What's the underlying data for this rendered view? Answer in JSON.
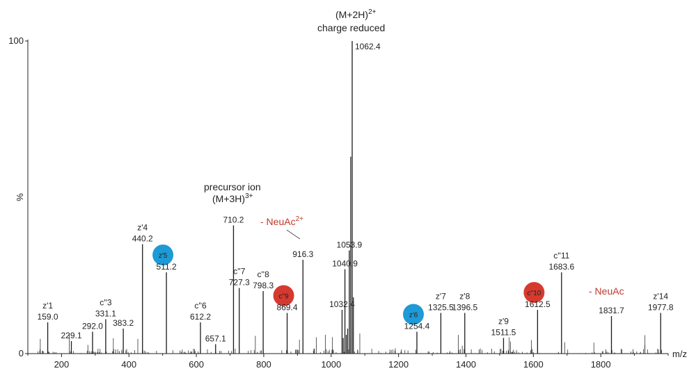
{
  "chart_data": {
    "type": "bar",
    "xlabel": "m/z",
    "ylabel": "%",
    "xlim": [
      100,
      2000
    ],
    "ylim": [
      0,
      100
    ],
    "x_ticks": [
      200,
      400,
      600,
      800,
      1000,
      1200,
      1400,
      1600,
      1800
    ],
    "y_ticks": [
      0,
      100
    ],
    "colors": {
      "axis": "#222222",
      "peak": "#1a1a1a",
      "blue": "#1e9ad6",
      "red": "#d63a2f",
      "red_text": "#c0392b"
    },
    "peaks": [
      {
        "x": 159.0,
        "y": 10,
        "label": "159.0",
        "ion": "z'1"
      },
      {
        "x": 229.1,
        "y": 4,
        "label": "229.1"
      },
      {
        "x": 292.0,
        "y": 7,
        "label": "292.0"
      },
      {
        "x": 331.1,
        "y": 11,
        "label": "331.1",
        "ion": "c''3"
      },
      {
        "x": 383.2,
        "y": 8,
        "label": "383.2"
      },
      {
        "x": 440.2,
        "y": 35,
        "label": "440.2",
        "ion": "z'4"
      },
      {
        "x": 511.2,
        "y": 26,
        "label": "511.2",
        "ion": "z'5",
        "marker": "blue"
      },
      {
        "x": 612.2,
        "y": 10,
        "label": "612.2",
        "ion": "c''6"
      },
      {
        "x": 657.1,
        "y": 3,
        "label": "657.1"
      },
      {
        "x": 710.2,
        "y": 41,
        "label": "710.2"
      },
      {
        "x": 727.3,
        "y": 21,
        "label": "727.3",
        "ion": "c''7"
      },
      {
        "x": 798.3,
        "y": 20,
        "label": "798.3",
        "ion": "c''8"
      },
      {
        "x": 869.4,
        "y": 13,
        "label": "869.4",
        "ion": "c''9",
        "marker": "red"
      },
      {
        "x": 916.3,
        "y": 30,
        "label": "916.3"
      },
      {
        "x": 1032.4,
        "y": 14,
        "label": "1032.4"
      },
      {
        "x": 1040.9,
        "y": 27,
        "label": "1040.9"
      },
      {
        "x": 1053.9,
        "y": 33,
        "label": "1053.9"
      },
      {
        "x": 1062.4,
        "y": 100,
        "label": "1062.4"
      },
      {
        "x": 1254.4,
        "y": 7,
        "label": "1254.4",
        "ion": "z'6",
        "marker": "blue"
      },
      {
        "x": 1325.5,
        "y": 13,
        "label": "1325.5",
        "ion": "z'7"
      },
      {
        "x": 1396.5,
        "y": 13,
        "label": "1396.5",
        "ion": "z'8"
      },
      {
        "x": 1511.5,
        "y": 5,
        "label": "1511.5",
        "ion": "z'9"
      },
      {
        "x": 1612.5,
        "y": 14,
        "label": "1612.5",
        "ion": "c''10",
        "marker": "red"
      },
      {
        "x": 1683.6,
        "y": 26,
        "label": "1683.6",
        "ion": "c''11"
      },
      {
        "x": 1831.7,
        "y": 12,
        "label": "1831.7"
      },
      {
        "x": 1977.8,
        "y": 13,
        "label": "1977.8",
        "ion": "z'14"
      }
    ],
    "annotations": {
      "charge_reduced_line1": "(M+2H)",
      "charge_reduced_sup": "2+",
      "charge_reduced_line2": "charge reduced",
      "precursor_line1": "precursor ion",
      "precursor_line2": "(M+3H)",
      "precursor_sup": "3+",
      "neuac2_text": "- NeuAc",
      "neuac2_sup": "2+",
      "neuac_text": "- NeuAc"
    }
  }
}
